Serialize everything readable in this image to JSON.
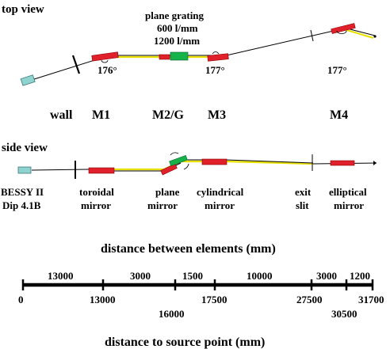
{
  "top_view": {
    "title": "top view",
    "grating_label": [
      "plane grating",
      "600 l/mm",
      "1200 l/mm"
    ],
    "angles": [
      "176°",
      "177°",
      "177°"
    ],
    "element_labels": [
      "wall",
      "M1",
      "M2/G",
      "M3",
      "M4"
    ]
  },
  "side_view": {
    "title": "side view",
    "labels": [
      [
        "BESSY II",
        "Dip 4.1B"
      ],
      [
        "toroidal",
        "mirror"
      ],
      [
        "plane",
        "mirror"
      ],
      [
        "cylindrical",
        "mirror"
      ],
      [
        "exit",
        "slit"
      ],
      [
        "elliptical",
        "mirror"
      ]
    ]
  },
  "scale": {
    "top_title": "distance between elements (mm)",
    "bottom_title": "distance to source point (mm)",
    "segments": [
      "13000",
      "3000",
      "1500",
      "10000",
      "3000",
      "1200"
    ],
    "positions": [
      "0",
      "13000",
      "16000",
      "17500",
      "27500",
      "30500",
      "31700"
    ]
  },
  "colors": {
    "mirror": "#e0202a",
    "grating": "#16b24a",
    "source": "#8fd3d0",
    "beam": "#e8e000"
  }
}
